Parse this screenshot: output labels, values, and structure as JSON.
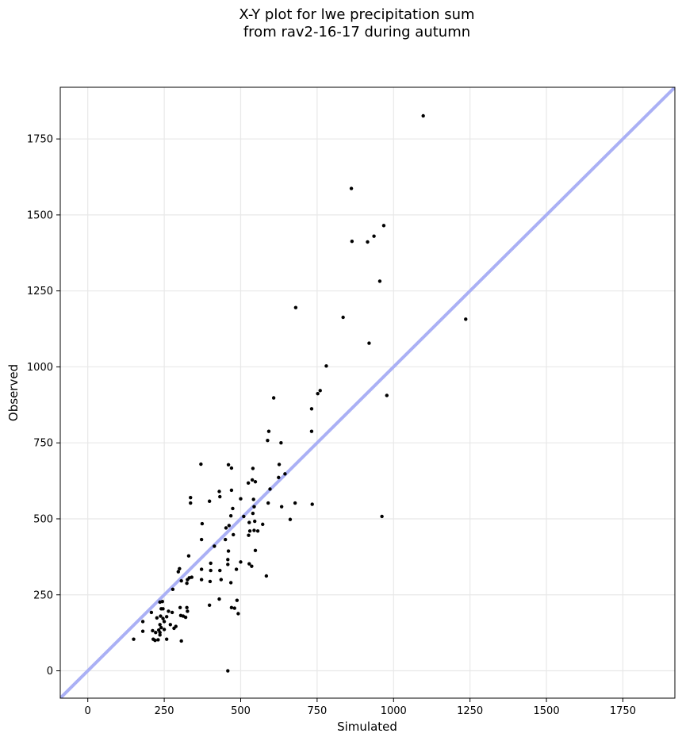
{
  "chart_data": {
    "type": "scatter",
    "title_lines": [
      "X-Y plot for lwe precipitation sum",
      "from rav2-16-17 during autumn"
    ],
    "xlabel": "Simulated",
    "ylabel": "Observed",
    "xlim": [
      -90,
      1920
    ],
    "ylim": [
      -90,
      1920
    ],
    "xticks": [
      0,
      250,
      500,
      750,
      1000,
      1250,
      1500,
      1750
    ],
    "yticks": [
      0,
      250,
      500,
      750,
      1000,
      1250,
      1500,
      1750
    ],
    "grid": true,
    "reference_line": {
      "type": "1:1",
      "color": "#aab0f5"
    },
    "marker_color": "#000000",
    "series": [
      {
        "points": [
          [
            1097,
            1826
          ],
          [
            862,
            1587
          ],
          [
            968,
            1465
          ],
          [
            936,
            1430
          ],
          [
            864,
            1413
          ],
          [
            915,
            1411
          ],
          [
            955,
            1282
          ],
          [
            680,
            1195
          ],
          [
            835,
            1163
          ],
          [
            1236,
            1157
          ],
          [
            920,
            1078
          ],
          [
            780,
            1003
          ],
          [
            760,
            922
          ],
          [
            752,
            912
          ],
          [
            608,
            898
          ],
          [
            978,
            906
          ],
          [
            732,
            862
          ],
          [
            592,
            788
          ],
          [
            732,
            788
          ],
          [
            588,
            758
          ],
          [
            632,
            750
          ],
          [
            370,
            680
          ],
          [
            460,
            678
          ],
          [
            626,
            679
          ],
          [
            470,
            667
          ],
          [
            540,
            666
          ],
          [
            645,
            648
          ],
          [
            624,
            636
          ],
          [
            538,
            628
          ],
          [
            470,
            594
          ],
          [
            430,
            590
          ],
          [
            525,
            618
          ],
          [
            548,
            622
          ],
          [
            596,
            598
          ],
          [
            432,
            573
          ],
          [
            336,
            570
          ],
          [
            398,
            558
          ],
          [
            336,
            552
          ],
          [
            500,
            566
          ],
          [
            542,
            564
          ],
          [
            590,
            552
          ],
          [
            678,
            552
          ],
          [
            734,
            548
          ],
          [
            634,
            540
          ],
          [
            544,
            540
          ],
          [
            474,
            534
          ],
          [
            540,
            518
          ],
          [
            468,
            510
          ],
          [
            510,
            508
          ],
          [
            662,
            498
          ],
          [
            962,
            508
          ],
          [
            374,
            484
          ],
          [
            546,
            492
          ],
          [
            572,
            482
          ],
          [
            528,
            488
          ],
          [
            462,
            478
          ],
          [
            452,
            470
          ],
          [
            544,
            462
          ],
          [
            556,
            460
          ],
          [
            530,
            460
          ],
          [
            476,
            448
          ],
          [
            526,
            446
          ],
          [
            372,
            432
          ],
          [
            450,
            432
          ],
          [
            414,
            410
          ],
          [
            460,
            394
          ],
          [
            548,
            396
          ],
          [
            330,
            378
          ],
          [
            458,
            366
          ],
          [
            402,
            354
          ],
          [
            458,
            350
          ],
          [
            528,
            352
          ],
          [
            536,
            344
          ],
          [
            486,
            334
          ],
          [
            372,
            334
          ],
          [
            402,
            330
          ],
          [
            432,
            330
          ],
          [
            500,
            358
          ],
          [
            584,
            312
          ],
          [
            300,
            336
          ],
          [
            296,
            326
          ],
          [
            340,
            308
          ],
          [
            332,
            306
          ],
          [
            326,
            300
          ],
          [
            372,
            300
          ],
          [
            436,
            300
          ],
          [
            306,
            296
          ],
          [
            400,
            294
          ],
          [
            468,
            290
          ],
          [
            324,
            288
          ],
          [
            278,
            268
          ],
          [
            430,
            236
          ],
          [
            488,
            232
          ],
          [
            302,
            208
          ],
          [
            324,
            208
          ],
          [
            398,
            216
          ],
          [
            470,
            208
          ],
          [
            480,
            206
          ],
          [
            326,
            196
          ],
          [
            264,
            196
          ],
          [
            246,
            204
          ],
          [
            240,
            204
          ],
          [
            236,
            226
          ],
          [
            244,
            228
          ],
          [
            276,
            192
          ],
          [
            304,
            182
          ],
          [
            312,
            180
          ],
          [
            320,
            176
          ],
          [
            208,
            192
          ],
          [
            258,
            178
          ],
          [
            238,
            180
          ],
          [
            226,
            174
          ],
          [
            246,
            172
          ],
          [
            180,
            162
          ],
          [
            250,
            162
          ],
          [
            270,
            152
          ],
          [
            236,
            152
          ],
          [
            288,
            146
          ],
          [
            240,
            142
          ],
          [
            282,
            140
          ],
          [
            250,
            136
          ],
          [
            232,
            134
          ],
          [
            212,
            132
          ],
          [
            180,
            130
          ],
          [
            236,
            126
          ],
          [
            222,
            126
          ],
          [
            236,
            118
          ],
          [
            150,
            104
          ],
          [
            214,
            104
          ],
          [
            230,
            102
          ],
          [
            220,
            100
          ],
          [
            258,
            104
          ],
          [
            306,
            98
          ],
          [
            492,
            188
          ],
          [
            458,
            0
          ]
        ]
      }
    ]
  }
}
